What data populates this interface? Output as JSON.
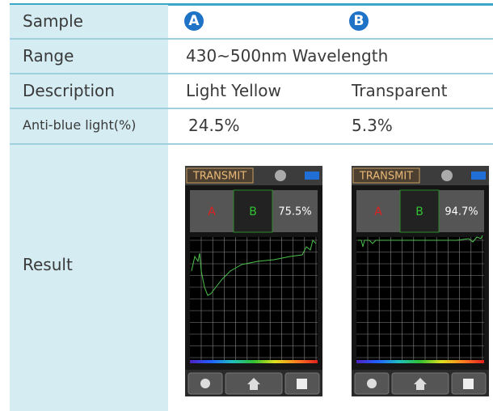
{
  "table": {
    "rows": [
      {
        "label": "Sample",
        "cells": [
          "A",
          "B"
        ]
      },
      {
        "label": "Range",
        "cells": [
          "430~500nm Wavelength"
        ]
      },
      {
        "label": "Description",
        "cells": [
          "Light Yellow",
          "Transparent"
        ]
      },
      {
        "label": "Anti-blue light(%)",
        "cells": [
          "24.5%",
          "5.3%"
        ]
      }
    ],
    "result": {
      "label": "Result",
      "screens": [
        {
          "mode": "TRANSMIT",
          "a": "A",
          "b": "B",
          "reading": "75.5%"
        },
        {
          "mode": "TRANSMIT",
          "a": "A",
          "b": "B",
          "reading": "94.7%"
        }
      ]
    }
  }
}
